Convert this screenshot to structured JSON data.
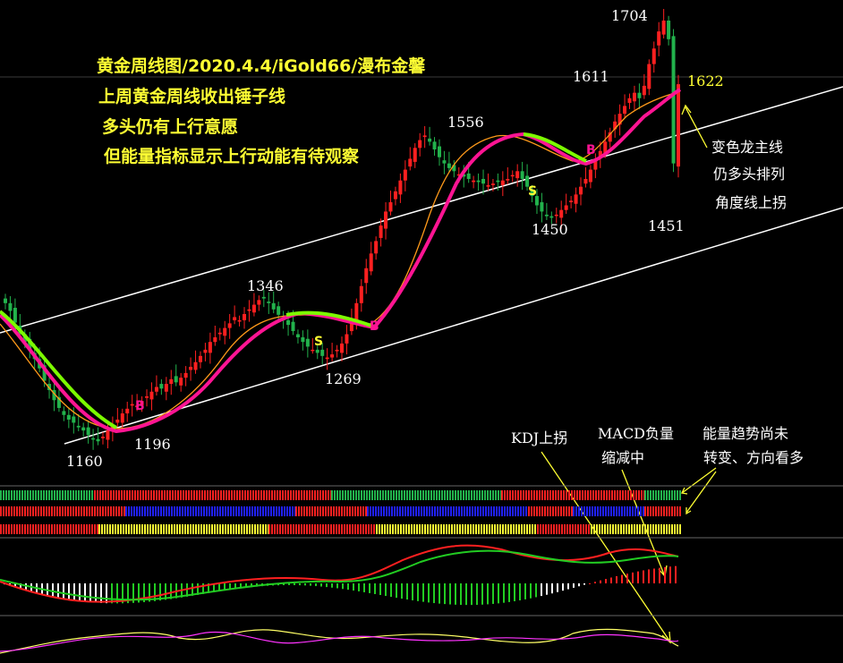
{
  "headline": {
    "title": "黄金周线图/2020.4.4/iGold66/漫布金馨",
    "line1": "上周黄金周线收出锤子线",
    "line2": "多头仍有上行意愿",
    "line3": "但能量指标显示上行动能有待观察"
  },
  "price_labels": {
    "p1704": "1704",
    "p1611": "1611",
    "p1622": "1622",
    "p1556": "1556",
    "p1450": "1450",
    "p1451": "1451",
    "p1346": "1346",
    "p1269": "1269",
    "p1196": "1196",
    "p1160": "1160"
  },
  "signals": {
    "buy": "B",
    "sell": "S"
  },
  "notes": {
    "trend_line1": "变色龙主线",
    "trend_line2": "仍多头排列",
    "trend_line3": "角度线上拐",
    "kdj": "KDJ上拐",
    "macd_line1": "MACD负量",
    "macd_line2": "缩减中",
    "energy_line1": "能量趋势尚未",
    "energy_line2": "转变、方向看多"
  },
  "colors": {
    "up": "#ff2020",
    "down": "#22b24c",
    "ma_green": "#7cfc00",
    "ma_magenta": "#ff1493",
    "ma_orange": "#ff9a1a",
    "annot": "#ffff33",
    "label": "#ffffff",
    "channel": "#ffffff"
  },
  "chart_data": {
    "type": "candlestick",
    "title": "黄金周线图/2020.4.4/iGold66/漫布金馨",
    "labeled_prices": [
      1704,
      1611,
      1622,
      1556,
      1450,
      1451,
      1346,
      1269,
      1196,
      1160
    ],
    "legend": "none",
    "grid": false,
    "indicator_panels": [
      "energy bars",
      "MACD",
      "KDJ"
    ],
    "approx_close_series": [
      1340,
      1330,
      1315,
      1300,
      1290,
      1280,
      1268,
      1256,
      1240,
      1228,
      1215,
      1205,
      1196,
      1190,
      1186,
      1180,
      1176,
      1170,
      1165,
      1162,
      1168,
      1176,
      1182,
      1190,
      1198,
      1204,
      1210,
      1208,
      1214,
      1220,
      1226,
      1232,
      1230,
      1236,
      1242,
      1238,
      1244,
      1250,
      1258,
      1264,
      1272,
      1280,
      1290,
      1296,
      1302,
      1308,
      1314,
      1322,
      1318,
      1326,
      1332,
      1338,
      1344,
      1346,
      1340,
      1332,
      1325,
      1318,
      1312,
      1304,
      1296,
      1290,
      1284,
      1280,
      1276,
      1272,
      1270,
      1274,
      1280,
      1288,
      1300,
      1318,
      1340,
      1362,
      1385,
      1404,
      1420,
      1440,
      1458,
      1470,
      1484,
      1498,
      1512,
      1526,
      1540,
      1550,
      1556,
      1548,
      1538,
      1528,
      1520,
      1514,
      1510,
      1506,
      1503,
      1500,
      1498,
      1496,
      1494,
      1492,
      1494,
      1496,
      1498,
      1500,
      1505,
      1510,
      1500,
      1490,
      1478,
      1466,
      1458,
      1452,
      1450,
      1454,
      1460,
      1466,
      1472,
      1480,
      1490,
      1500,
      1512,
      1524,
      1536,
      1548,
      1560,
      1574,
      1584,
      1594,
      1604,
      1611,
      1604,
      1620,
      1648,
      1668,
      1690,
      1704,
      1680,
      1520,
      1622
    ]
  }
}
